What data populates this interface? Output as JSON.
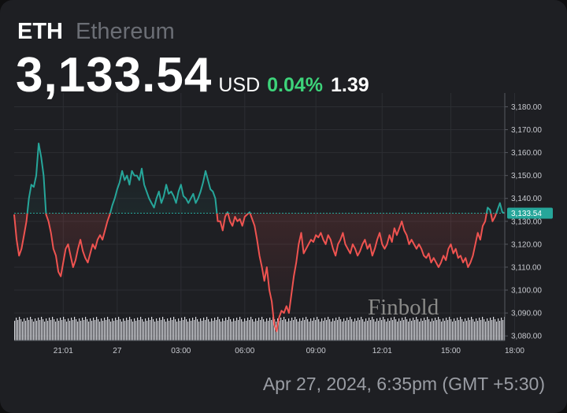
{
  "header": {
    "ticker": "ETH",
    "name": "Ethereum",
    "price": "3,133.54",
    "currency": "USD",
    "change_pct": "0.04%",
    "change_abs": "1.39"
  },
  "footer": {
    "timestamp": "Apr 27, 2024, 6:35pm (GMT +5:30)"
  },
  "watermark": "Finbold",
  "colors": {
    "up": "#26a69a",
    "down": "#ef5350",
    "positive_text": "#3dd37a",
    "background": "#1e1f23"
  },
  "chart_data": {
    "type": "line",
    "baseline": 3133.54,
    "last_price_label": "3,133.54",
    "ylim": [
      3078,
      3186
    ],
    "y_ticks": [
      3080,
      3090,
      3100,
      3110,
      3120,
      3130,
      3140,
      3150,
      3160,
      3170,
      3180
    ],
    "y_tick_labels": [
      "3,080.00",
      "3,090.00",
      "3,100.00",
      "3,110.00",
      "3,120.00",
      "3,130.00",
      "3,140.00",
      "3,150.00",
      "3,160.00",
      "3,170.00",
      "3,180.00"
    ],
    "x_tick_labels": [
      "21:01",
      "27",
      "03:00",
      "06:00",
      "09:00",
      "12:01",
      "15:00",
      "18:00"
    ],
    "x_tick_index": [
      20,
      42,
      68,
      94,
      123,
      150,
      178,
      204
    ],
    "grid": true,
    "volume_bars": true,
    "series": [
      {
        "values": [
          3133,
          3122,
          3115,
          3118,
          3124,
          3130,
          3140,
          3146,
          3145,
          3150,
          3164,
          3158,
          3150,
          3133,
          3130,
          3125,
          3118,
          3115,
          3108,
          3106,
          3112,
          3118,
          3120,
          3115,
          3110,
          3113,
          3118,
          3122,
          3117,
          3114,
          3112,
          3116,
          3120,
          3118,
          3122,
          3124,
          3122,
          3126,
          3130,
          3133,
          3137,
          3140,
          3144,
          3147,
          3152,
          3148,
          3150,
          3146,
          3152,
          3150,
          3150,
          3148,
          3153,
          3146,
          3143,
          3140,
          3138,
          3136,
          3140,
          3143,
          3138,
          3141,
          3146,
          3142,
          3143,
          3141,
          3138,
          3143,
          3146,
          3141,
          3140,
          3138,
          3140,
          3142,
          3138,
          3140,
          3143,
          3147,
          3152,
          3148,
          3144,
          3143,
          3140,
          3130,
          3130,
          3126,
          3132,
          3134,
          3130,
          3128,
          3132,
          3130,
          3131,
          3128,
          3132,
          3133,
          3134,
          3131,
          3128,
          3122,
          3115,
          3110,
          3104,
          3110,
          3100,
          3095,
          3085,
          3082,
          3088,
          3091,
          3090,
          3093,
          3090,
          3098,
          3106,
          3112,
          3120,
          3125,
          3116,
          3118,
          3120,
          3122,
          3121,
          3124,
          3123,
          3125,
          3122,
          3120,
          3124,
          3122,
          3118,
          3115,
          3120,
          3122,
          3125,
          3120,
          3118,
          3116,
          3120,
          3118,
          3115,
          3117,
          3120,
          3122,
          3118,
          3120,
          3115,
          3118,
          3122,
          3125,
          3120,
          3118,
          3120,
          3124,
          3121,
          3127,
          3124,
          3127,
          3130,
          3126,
          3124,
          3120,
          3122,
          3120,
          3118,
          3120,
          3118,
          3115,
          3114,
          3116,
          3112,
          3114,
          3112,
          3110,
          3112,
          3115,
          3113,
          3118,
          3120,
          3116,
          3118,
          3114,
          3115,
          3112,
          3114,
          3110,
          3112,
          3115,
          3120,
          3125,
          3122,
          3128,
          3130,
          3136,
          3135,
          3130,
          3132,
          3135,
          3138,
          3134,
          3133.54
        ]
      }
    ]
  }
}
